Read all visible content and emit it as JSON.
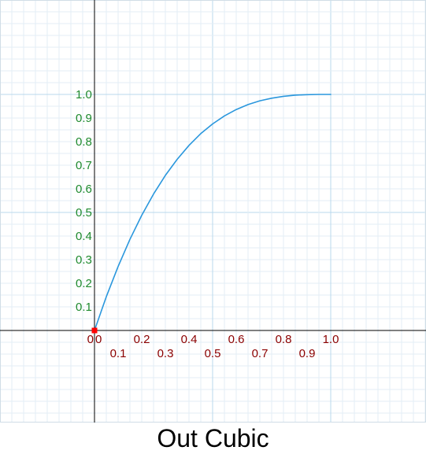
{
  "chart_data": {
    "type": "line",
    "title": "Out Cubic",
    "xlabel": "",
    "ylabel": "",
    "x_ticks_row1": [
      "0",
      "0.2",
      "0.4",
      "0.6",
      "0.8",
      "1.0"
    ],
    "x_ticks_row2": [
      "0.1",
      "0.3",
      "0.5",
      "0.7",
      "0.9"
    ],
    "y_ticks": [
      "0.1",
      "0.2",
      "0.3",
      "0.4",
      "0.5",
      "0.6",
      "0.7",
      "0.8",
      "0.9",
      "1.0"
    ],
    "origin_label": "0",
    "xlim": [
      -0.4,
      1.4
    ],
    "ylim": [
      -0.4,
      1.4
    ],
    "grid": true,
    "series": [
      {
        "x": [
          0,
          0.05,
          0.1,
          0.15,
          0.2,
          0.25,
          0.3,
          0.35,
          0.4,
          0.45,
          0.5,
          0.55,
          0.6,
          0.65,
          0.7,
          0.75,
          0.8,
          0.85,
          0.9,
          0.95,
          1.0
        ],
        "y": [
          0,
          0.143,
          0.271,
          0.386,
          0.488,
          0.578,
          0.657,
          0.725,
          0.784,
          0.834,
          0.875,
          0.909,
          0.936,
          0.957,
          0.973,
          0.984,
          0.992,
          0.997,
          0.999,
          1.0,
          1.0
        ]
      }
    ],
    "colors": {
      "line": "#2a97dd",
      "x_tick_text": "#8b0000",
      "y_tick_text": "#1e8a2e",
      "origin_marker": "#ff0000",
      "axis": "#000000",
      "grid_minor": "#e3eef5",
      "grid_major": "#b9d8ec"
    }
  }
}
